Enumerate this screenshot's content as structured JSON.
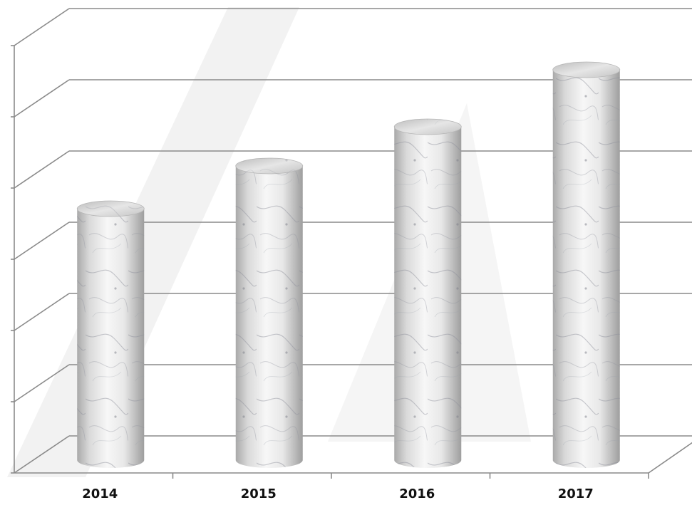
{
  "chart_data": {
    "type": "bar",
    "style": "3d-cylinder",
    "categories": [
      "2014",
      "2015",
      "2016",
      "2017"
    ],
    "values": [
      3.45,
      4.05,
      4.6,
      5.4
    ],
    "ylim": [
      0,
      6
    ],
    "yticks": [
      0,
      1,
      2,
      3,
      4,
      5,
      6
    ],
    "grid": true,
    "legend": "none",
    "title": "",
    "xlabel": "",
    "ylabel": ""
  },
  "colors": {
    "grid": "#8a8a8a",
    "bar_light": "#f4f4f4",
    "bar_mid": "#d6d6d6",
    "bar_dark": "#9a9a9a",
    "vein": "#8c8f99",
    "watermark": "#f3f3f3"
  }
}
